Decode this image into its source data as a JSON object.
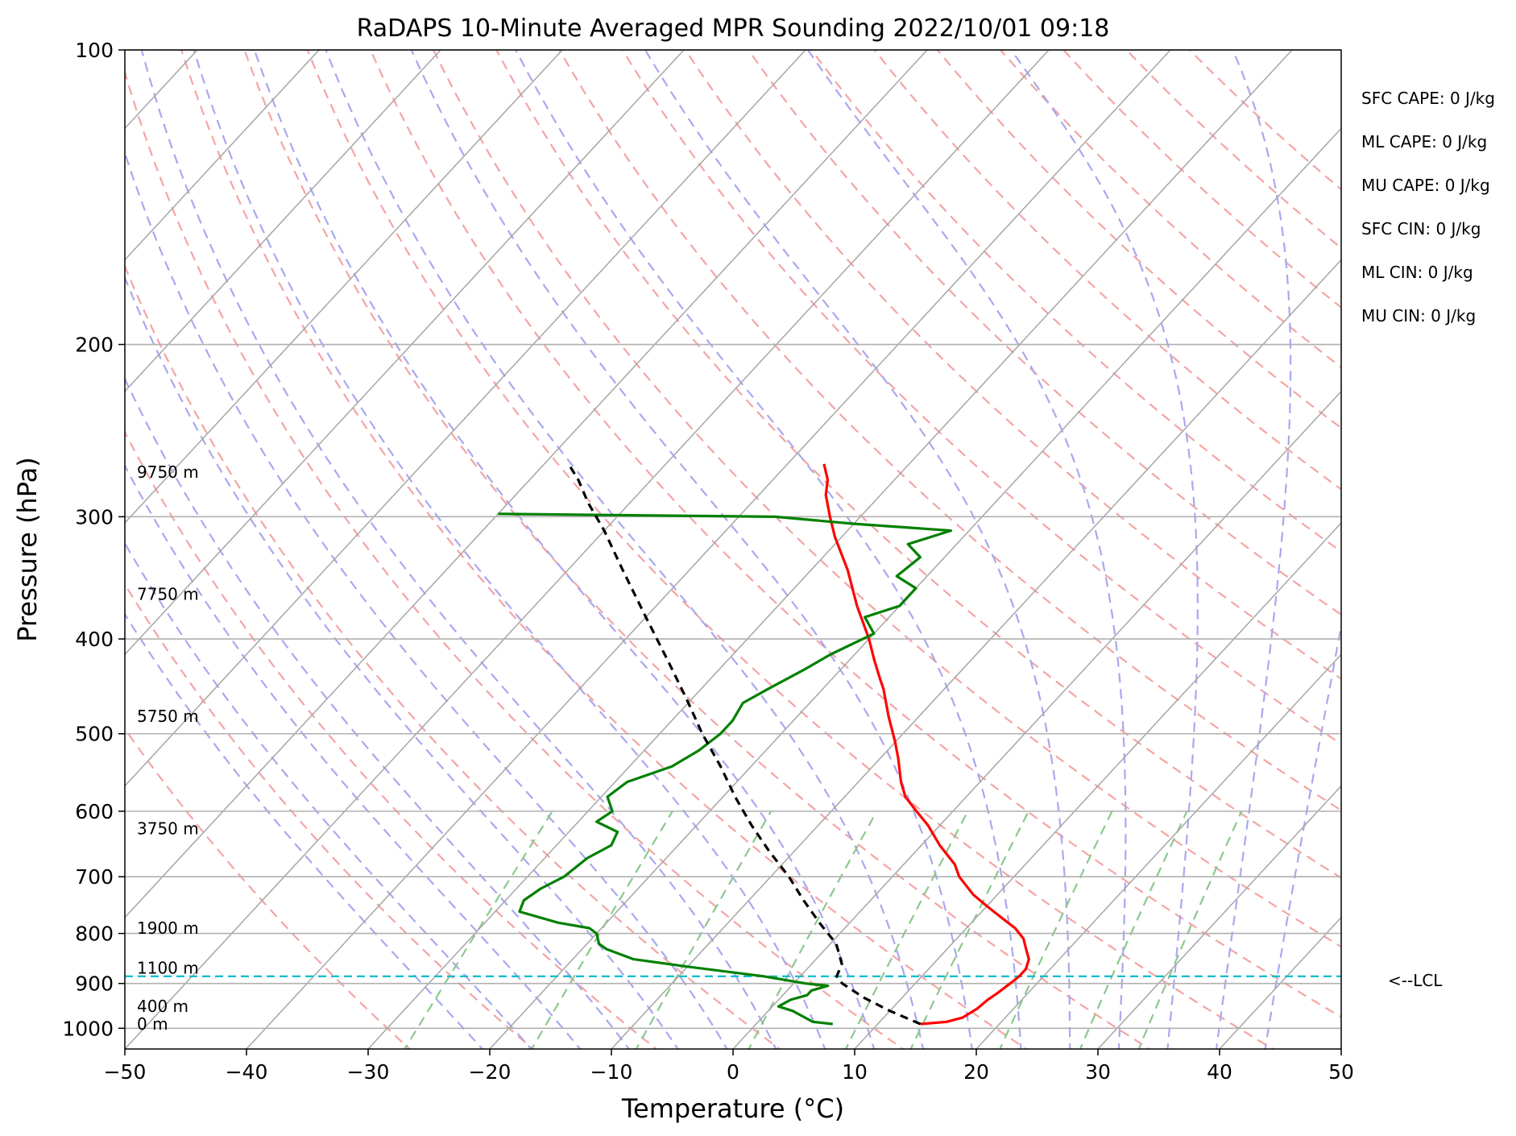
{
  "chart_data": {
    "type": "line",
    "title": "RaDAPS 10-Minute Averaged MPR Sounding 2022/10/01 09:18",
    "xlabel": "Temperature (°C)",
    "ylabel": "Pressure (hPa)",
    "xlim": [
      -50,
      50
    ],
    "ylim": [
      1050,
      100
    ],
    "y_scale": "log",
    "skew": true,
    "x_ticks": [
      -50,
      -40,
      -30,
      -20,
      -10,
      0,
      10,
      20,
      30,
      40,
      50
    ],
    "x_tick_labels": [
      "−50",
      "−40",
      "−30",
      "−20",
      "−10",
      "0",
      "10",
      "20",
      "30",
      "40",
      "50"
    ],
    "y_ticks": [
      1000,
      900,
      800,
      700,
      600,
      500,
      400,
      300,
      200,
      100
    ],
    "y_tick_labels": [
      "1000",
      "900",
      "800",
      "700",
      "600",
      "500",
      "400",
      "300",
      "200",
      "100"
    ],
    "grid": true,
    "background_lines": {
      "isotherm_color": "#a6a6a6",
      "dry_adiabat_color": "#f4a4a4",
      "moist_adiabat_color": "#a8a8f0",
      "mixing_ratio_color": "#8cc88c"
    },
    "height_labels": [
      {
        "p": 990,
        "text": "0 m"
      },
      {
        "p": 950,
        "text": "400 m"
      },
      {
        "p": 868,
        "text": "1100 m"
      },
      {
        "p": 790,
        "text": "1900 m"
      },
      {
        "p": 625,
        "text": "3750 m"
      },
      {
        "p": 480,
        "text": "5750 m"
      },
      {
        "p": 360,
        "text": "7750 m"
      },
      {
        "p": 270,
        "text": "9750 m"
      }
    ],
    "lcl": {
      "p": 885,
      "label": "<--LCL",
      "color": "#17becf"
    },
    "series": [
      {
        "color": "#ff0000",
        "style": "solid",
        "points": [
          [
            990,
            13.5
          ],
          [
            985,
            15.5
          ],
          [
            975,
            16.5
          ],
          [
            955,
            17.0
          ],
          [
            935,
            17.2
          ],
          [
            920,
            17.5
          ],
          [
            900,
            17.8
          ],
          [
            885,
            18.0
          ],
          [
            870,
            18.0
          ],
          [
            850,
            17.5
          ],
          [
            830,
            16.5
          ],
          [
            810,
            15.5
          ],
          [
            790,
            14.0
          ],
          [
            770,
            12.0
          ],
          [
            750,
            10.0
          ],
          [
            730,
            8.0
          ],
          [
            700,
            5.5
          ],
          [
            680,
            4.2
          ],
          [
            650,
            1.5
          ],
          [
            620,
            -1.0
          ],
          [
            600,
            -3.0
          ],
          [
            580,
            -5.0
          ],
          [
            560,
            -6.5
          ],
          [
            530,
            -8.5
          ],
          [
            510,
            -10.0
          ],
          [
            480,
            -12.5
          ],
          [
            450,
            -15.0
          ],
          [
            440,
            -16.0
          ],
          [
            420,
            -18.0
          ],
          [
            400,
            -20.0
          ],
          [
            370,
            -23.5
          ],
          [
            340,
            -27.0
          ],
          [
            315,
            -30.5
          ],
          [
            300,
            -32.5
          ],
          [
            285,
            -34.5
          ],
          [
            275,
            -35.5
          ],
          [
            265,
            -37.0
          ]
        ]
      },
      {
        "color": "#008000",
        "style": "solid",
        "points": [
          [
            990,
            6.3
          ],
          [
            985,
            4.5
          ],
          [
            975,
            3.5
          ],
          [
            960,
            2.0
          ],
          [
            950,
            0.5
          ],
          [
            935,
            1.0
          ],
          [
            925,
            2.0
          ],
          [
            915,
            2.0
          ],
          [
            905,
            3.0
          ],
          [
            900,
            1.0
          ],
          [
            885,
            -3.0
          ],
          [
            865,
            -10.0
          ],
          [
            850,
            -15.0
          ],
          [
            830,
            -18.0
          ],
          [
            820,
            -19.0
          ],
          [
            800,
            -20.0
          ],
          [
            790,
            -21.0
          ],
          [
            780,
            -24.0
          ],
          [
            760,
            -28.0
          ],
          [
            740,
            -28.5
          ],
          [
            720,
            -28.0
          ],
          [
            700,
            -27.0
          ],
          [
            670,
            -26.5
          ],
          [
            650,
            -25.5
          ],
          [
            630,
            -26.0
          ],
          [
            615,
            -28.5
          ],
          [
            600,
            -28.0
          ],
          [
            580,
            -29.5
          ],
          [
            560,
            -29.0
          ],
          [
            540,
            -26.5
          ],
          [
            520,
            -25.5
          ],
          [
            500,
            -25.0
          ],
          [
            485,
            -25.0
          ],
          [
            465,
            -25.5
          ],
          [
            450,
            -24.5
          ],
          [
            430,
            -23.0
          ],
          [
            415,
            -22.0
          ],
          [
            395,
            -20.0
          ],
          [
            380,
            -22.0
          ],
          [
            370,
            -20.0
          ],
          [
            355,
            -20.0
          ],
          [
            345,
            -22.5
          ],
          [
            330,
            -22.0
          ],
          [
            320,
            -24.0
          ],
          [
            310,
            -21.5
          ],
          [
            305,
            -30.0
          ],
          [
            300,
            -37.0
          ],
          [
            298,
            -60.0
          ]
        ]
      },
      {
        "color": "#000000",
        "style": "dashed",
        "points": [
          [
            990,
            13.5
          ],
          [
            960,
            10.0
          ],
          [
            930,
            6.8
          ],
          [
            900,
            4.0
          ],
          [
            885,
            3.0
          ],
          [
            860,
            2.5
          ],
          [
            820,
            0.5
          ],
          [
            780,
            -2.5
          ],
          [
            740,
            -5.5
          ],
          [
            700,
            -8.5
          ],
          [
            660,
            -12.0
          ],
          [
            620,
            -15.5
          ],
          [
            580,
            -19.0
          ],
          [
            540,
            -22.5
          ],
          [
            500,
            -26.5
          ],
          [
            460,
            -30.5
          ],
          [
            420,
            -35.0
          ],
          [
            380,
            -40.0
          ],
          [
            340,
            -45.5
          ],
          [
            310,
            -50.0
          ],
          [
            290,
            -53.5
          ],
          [
            275,
            -56.0
          ],
          [
            265,
            -58.0
          ]
        ]
      }
    ],
    "annotations": [
      "SFC CAPE: 0 J/kg",
      "ML CAPE: 0 J/kg",
      "MU CAPE: 0 J/kg",
      "SFC CIN: 0 J/kg",
      "ML CIN: 0 J/kg",
      "MU CIN: 0 J/kg"
    ]
  }
}
